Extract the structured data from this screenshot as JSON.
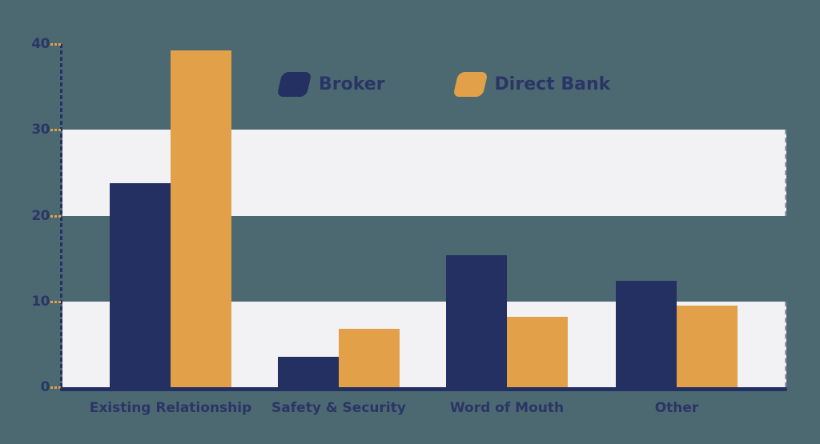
{
  "colors": {
    "background": "#4C6972",
    "band": "#F2F1F3",
    "navy": "#243061",
    "orange": "#E2A148",
    "axis": "#243061",
    "tick": "#E2A148",
    "label_text": "#2A3565"
  },
  "legend": {
    "items": [
      {
        "label": "Broker",
        "color": "#243061"
      },
      {
        "label": "Direct Bank",
        "color": "#E2A148"
      }
    ]
  },
  "chart_data": {
    "type": "bar",
    "title": "",
    "xlabel": "",
    "ylabel": "",
    "categories": [
      "Existing Relationship",
      "Safety & Security",
      "Word of Mouth",
      "Other"
    ],
    "series": [
      {
        "name": "Broker",
        "color": "#243061",
        "values": [
          23.8,
          3.5,
          15.4,
          12.4
        ]
      },
      {
        "name": "Direct Bank",
        "color": "#E2A148",
        "values": [
          39.3,
          6.8,
          8.2,
          9.5
        ]
      }
    ],
    "ylim": [
      0,
      40
    ],
    "yticks": [
      0,
      10,
      20,
      30,
      40
    ],
    "background_bands": [
      [
        0,
        10
      ],
      [
        20,
        30
      ]
    ],
    "grid": false,
    "legend_position": "top-center"
  }
}
